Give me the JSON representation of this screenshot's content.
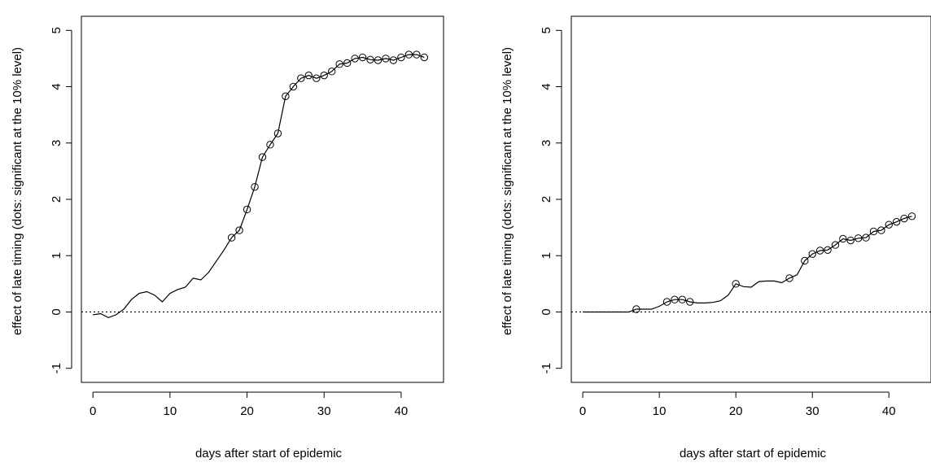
{
  "chart_data": [
    {
      "type": "line",
      "title": "",
      "xlabel": "days after start of epidemic",
      "ylabel": "effect of late timing (dots: significant at the 10% level)",
      "xlim": [
        -1.5,
        45.5
      ],
      "ylim": [
        -1.25,
        5.25
      ],
      "xticks": [
        0,
        10,
        20,
        30,
        40
      ],
      "yticks": [
        -1,
        0,
        1,
        2,
        3,
        4,
        5
      ],
      "reference_line": {
        "y": 0,
        "style": "dotted"
      },
      "series": [
        {
          "x": [
            0,
            1,
            2,
            3,
            4,
            5,
            6,
            7,
            8,
            9,
            10,
            11,
            12,
            13,
            14,
            15,
            16,
            17,
            18,
            19,
            20,
            21,
            22,
            23,
            24,
            25,
            26,
            27,
            28,
            29,
            30,
            31,
            32,
            33,
            34,
            35,
            36,
            37,
            38,
            39,
            40,
            41,
            42,
            43
          ],
          "y": [
            -0.05,
            -0.03,
            -0.1,
            -0.05,
            0.05,
            0.22,
            0.33,
            0.36,
            0.3,
            0.18,
            0.33,
            0.4,
            0.44,
            0.6,
            0.57,
            0.7,
            0.9,
            1.1,
            1.32,
            1.45,
            1.82,
            2.22,
            2.75,
            2.97,
            3.17,
            3.83,
            4.0,
            4.15,
            4.2,
            4.15,
            4.2,
            4.27,
            4.4,
            4.42,
            4.5,
            4.52,
            4.48,
            4.47,
            4.5,
            4.47,
            4.52,
            4.57,
            4.57,
            4.52
          ],
          "significant": [
            false,
            false,
            false,
            false,
            false,
            false,
            false,
            false,
            false,
            false,
            false,
            false,
            false,
            false,
            false,
            false,
            false,
            false,
            true,
            true,
            true,
            true,
            true,
            true,
            true,
            true,
            true,
            true,
            true,
            true,
            true,
            true,
            true,
            true,
            true,
            true,
            true,
            true,
            true,
            true,
            true,
            true,
            true,
            true
          ]
        }
      ]
    },
    {
      "type": "line",
      "title": "",
      "xlabel": "days after start of epidemic",
      "ylabel": "effect of late timing (dots: significant at the 10% level)",
      "xlim": [
        -1.5,
        45.5
      ],
      "ylim": [
        -1.25,
        5.25
      ],
      "xticks": [
        0,
        10,
        20,
        30,
        40
      ],
      "yticks": [
        -1,
        0,
        1,
        2,
        3,
        4,
        5
      ],
      "reference_line": {
        "y": 0,
        "style": "dotted"
      },
      "series": [
        {
          "x": [
            0,
            1,
            2,
            3,
            4,
            5,
            6,
            7,
            8,
            9,
            10,
            11,
            12,
            13,
            14,
            15,
            16,
            17,
            18,
            19,
            20,
            21,
            22,
            23,
            24,
            25,
            26,
            27,
            28,
            29,
            30,
            31,
            32,
            33,
            34,
            35,
            36,
            37,
            38,
            39,
            40,
            41,
            42,
            43
          ],
          "y": [
            0,
            0,
            0,
            0,
            0,
            0,
            0,
            0.05,
            0.05,
            0.05,
            0.1,
            0.18,
            0.22,
            0.22,
            0.18,
            0.16,
            0.16,
            0.17,
            0.2,
            0.3,
            0.5,
            0.45,
            0.44,
            0.54,
            0.55,
            0.55,
            0.52,
            0.6,
            0.66,
            0.91,
            1.03,
            1.09,
            1.1,
            1.19,
            1.3,
            1.27,
            1.31,
            1.32,
            1.43,
            1.45,
            1.55,
            1.6,
            1.66,
            1.7
          ],
          "significant": [
            false,
            false,
            false,
            false,
            false,
            false,
            false,
            true,
            false,
            false,
            false,
            true,
            true,
            true,
            true,
            false,
            false,
            false,
            false,
            false,
            true,
            false,
            false,
            false,
            false,
            false,
            false,
            true,
            false,
            true,
            true,
            true,
            true,
            true,
            true,
            true,
            true,
            true,
            true,
            true,
            true,
            true,
            true,
            true
          ]
        }
      ]
    }
  ]
}
